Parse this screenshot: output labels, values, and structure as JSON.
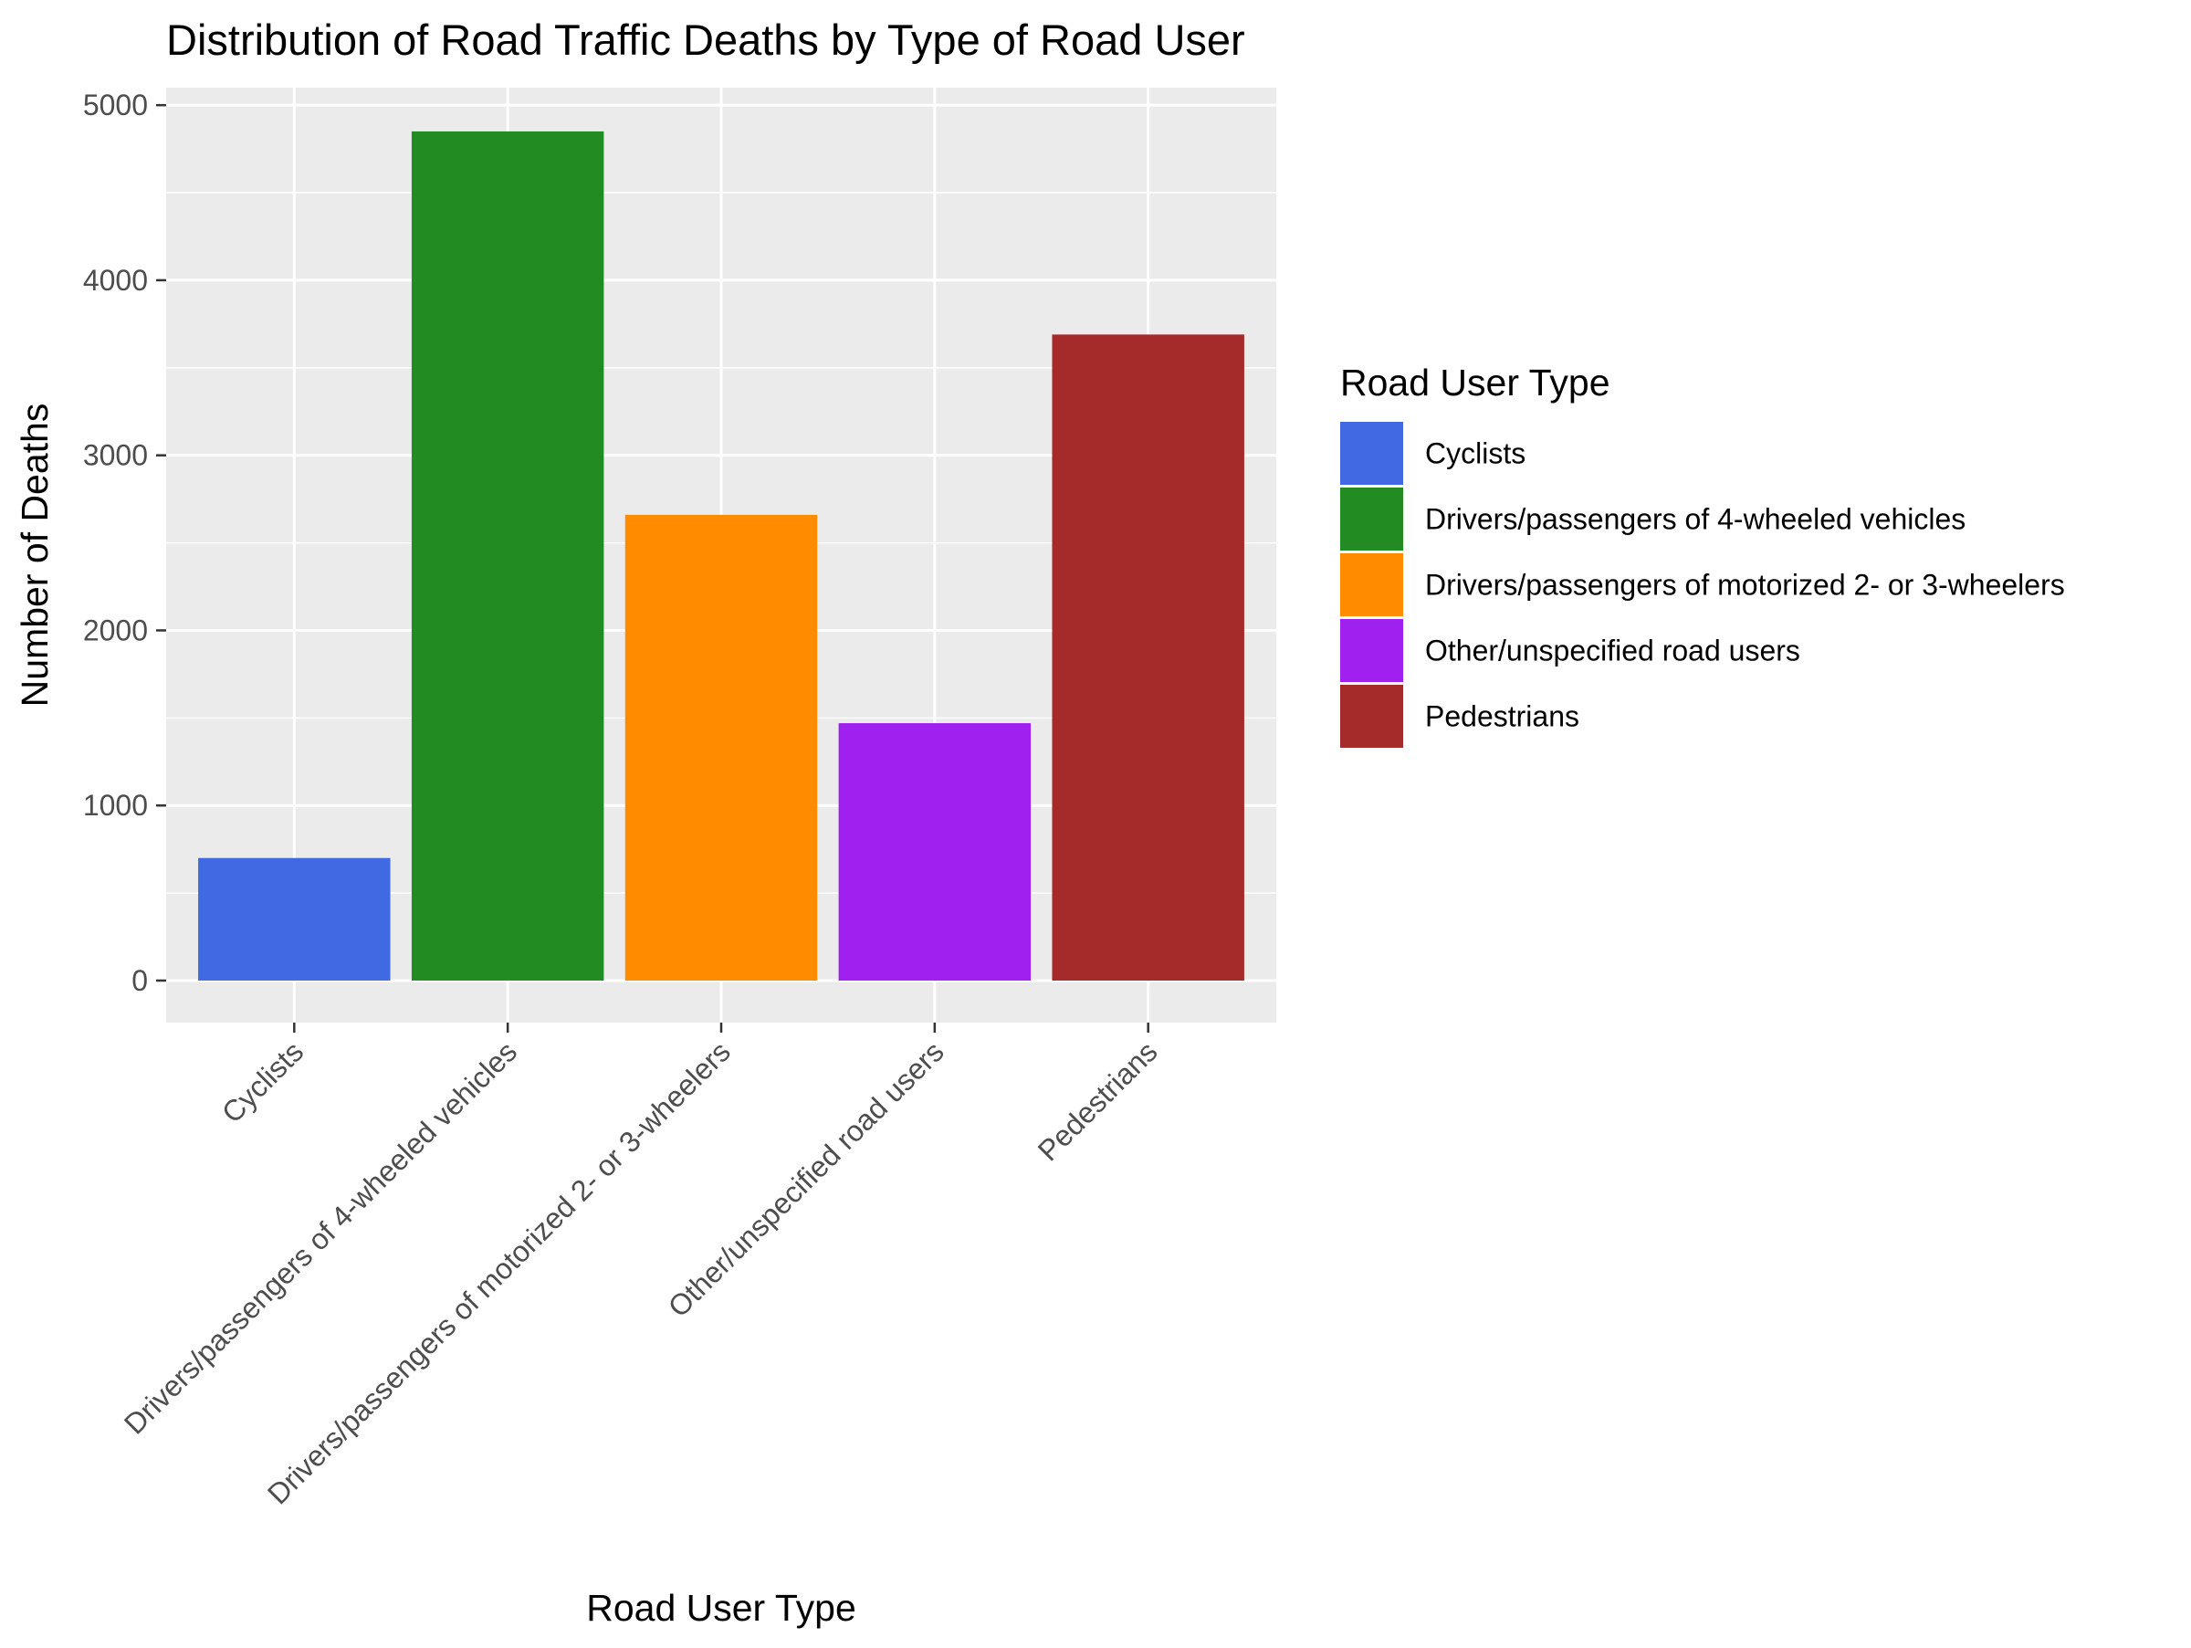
{
  "chart_data": {
    "type": "bar",
    "title": "Distribution of Road Traffic Deaths by Type of Road User",
    "xlabel": "Road User Type",
    "ylabel": "Number of Deaths",
    "categories": [
      "Cyclists",
      "Drivers/passengers of 4-wheeled vehicles",
      "Drivers/passengers of motorized 2- or 3-wheelers",
      "Other/unspecified road users",
      "Pedestrians"
    ],
    "values": [
      700,
      4850,
      2660,
      1470,
      3690
    ],
    "colors": [
      "#4169e1",
      "#228b22",
      "#ff8c00",
      "#a020f0",
      "#a52a2a"
    ],
    "ylim": [
      -240,
      5100
    ],
    "yticks": [
      0,
      1000,
      2000,
      3000,
      4000,
      5000
    ],
    "grid": true,
    "legend": {
      "title": "Road User Type",
      "position": "right",
      "items": [
        "Cyclists",
        "Drivers/passengers of 4-wheeled vehicles",
        "Drivers/passengers of motorized 2- or 3-wheelers",
        "Other/unspecified road users",
        "Pedestrians"
      ]
    },
    "panel_background": "#ebebeb",
    "grid_color": "#ffffff"
  }
}
